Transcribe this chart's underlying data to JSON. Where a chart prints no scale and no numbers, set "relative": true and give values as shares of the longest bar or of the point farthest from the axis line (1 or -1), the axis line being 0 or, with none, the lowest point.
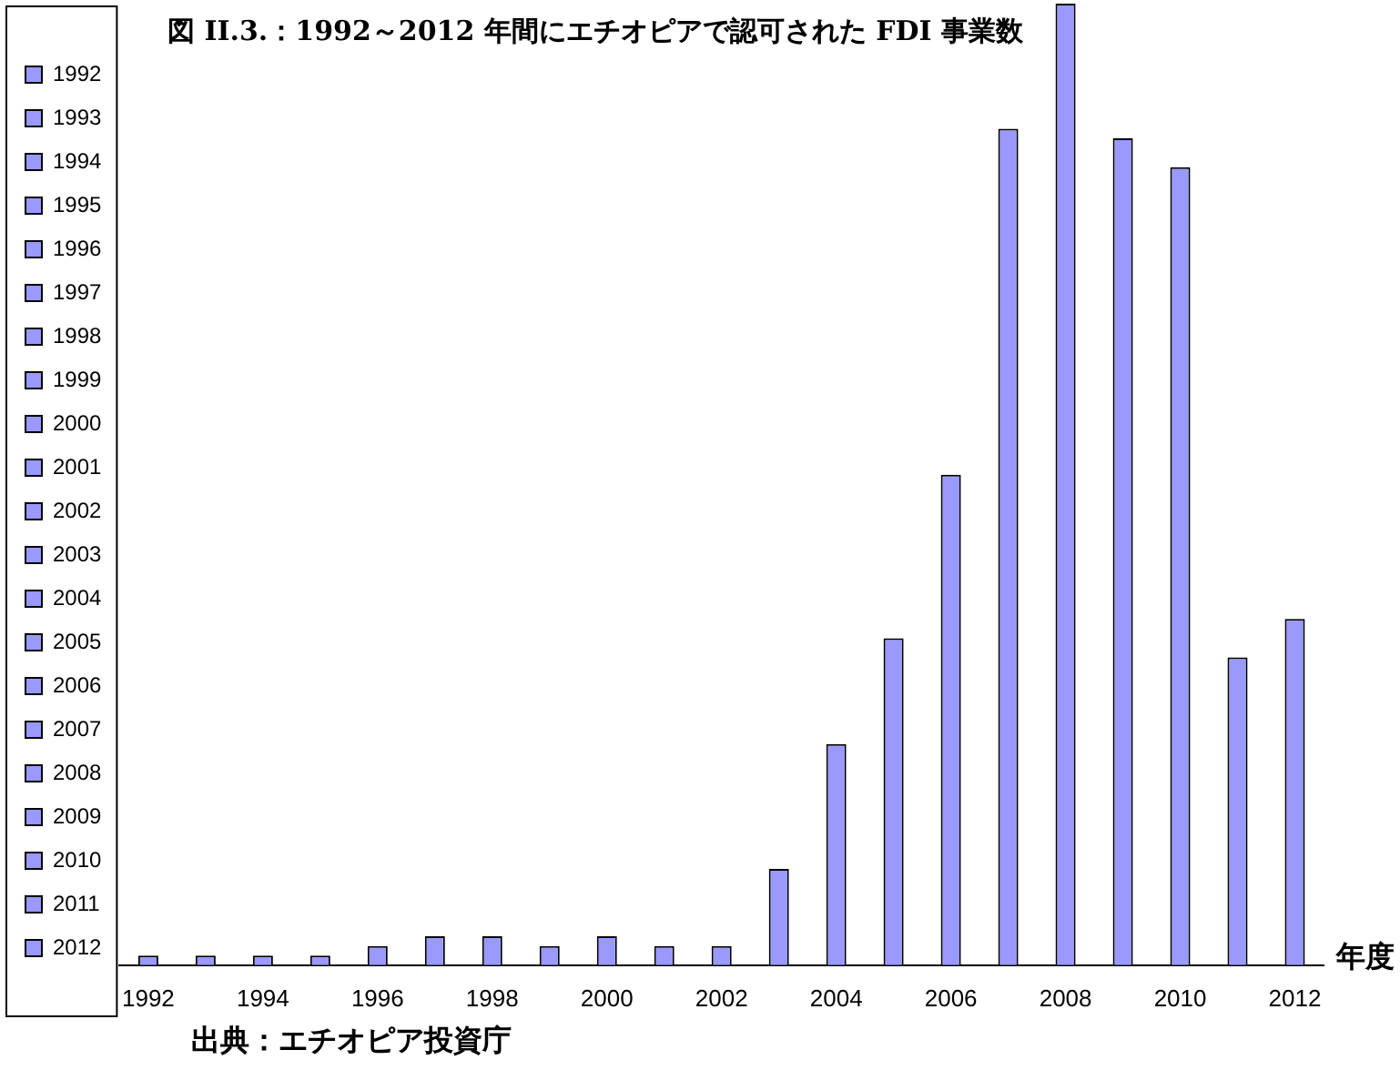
{
  "chart_data": {
    "type": "bar",
    "title": "図 II.3.：1992～2012 年間にエチオピアで認可された FDI 事業数",
    "xlabel": "年度",
    "annotations": [
      "出典：エチオピア投資庁"
    ],
    "categories": [
      "1992",
      null,
      "1994",
      null,
      "1996",
      null,
      "1998",
      null,
      "2000",
      null,
      "2002",
      null,
      "2004",
      null,
      "2006",
      null,
      "2008",
      null,
      "2010",
      null,
      "2012"
    ],
    "series": [
      {
        "name": "1992",
        "color": "#9999ff",
        "values": [
          0.01,
          null,
          null,
          null,
          null,
          null,
          null,
          null,
          null,
          null,
          null,
          null,
          null,
          null,
          null,
          null,
          null,
          null,
          null,
          null,
          null
        ]
      },
      {
        "name": "1993",
        "color": "#9999ff",
        "values": [
          null,
          0.01,
          null,
          null,
          null,
          null,
          null,
          null,
          null,
          null,
          null,
          null,
          null,
          null,
          null,
          null,
          null,
          null,
          null,
          null,
          null
        ]
      },
      {
        "name": "1994",
        "color": "#9999ff",
        "values": [
          null,
          null,
          0.01,
          null,
          null,
          null,
          null,
          null,
          null,
          null,
          null,
          null,
          null,
          null,
          null,
          null,
          null,
          null,
          null,
          null,
          null
        ]
      },
      {
        "name": "1995",
        "color": "#9999ff",
        "values": [
          null,
          null,
          null,
          0.01,
          null,
          null,
          null,
          null,
          null,
          null,
          null,
          null,
          null,
          null,
          null,
          null,
          null,
          null,
          null,
          null,
          null
        ]
      },
      {
        "name": "1996",
        "color": "#9999ff",
        "values": [
          null,
          null,
          null,
          null,
          0.02,
          null,
          null,
          null,
          null,
          null,
          null,
          null,
          null,
          null,
          null,
          null,
          null,
          null,
          null,
          null,
          null
        ]
      },
      {
        "name": "1997",
        "color": "#9999ff",
        "values": [
          null,
          null,
          null,
          null,
          null,
          0.03,
          null,
          null,
          null,
          null,
          null,
          null,
          null,
          null,
          null,
          null,
          null,
          null,
          null,
          null,
          null
        ]
      },
      {
        "name": "1998",
        "color": "#9999ff",
        "values": [
          null,
          null,
          null,
          null,
          null,
          null,
          0.03,
          null,
          null,
          null,
          null,
          null,
          null,
          null,
          null,
          null,
          null,
          null,
          null,
          null,
          null
        ]
      },
      {
        "name": "1999",
        "color": "#9999ff",
        "values": [
          null,
          null,
          null,
          null,
          null,
          null,
          null,
          0.02,
          null,
          null,
          null,
          null,
          null,
          null,
          null,
          null,
          null,
          null,
          null,
          null,
          null
        ]
      },
      {
        "name": "2000",
        "color": "#9999ff",
        "values": [
          null,
          null,
          null,
          null,
          null,
          null,
          null,
          null,
          0.03,
          null,
          null,
          null,
          null,
          null,
          null,
          null,
          null,
          null,
          null,
          null,
          null
        ]
      },
      {
        "name": "2001",
        "color": "#9999ff",
        "values": [
          null,
          null,
          null,
          null,
          null,
          null,
          null,
          null,
          null,
          0.02,
          null,
          null,
          null,
          null,
          null,
          null,
          null,
          null,
          null,
          null,
          null
        ]
      },
      {
        "name": "2002",
        "color": "#9999ff",
        "values": [
          null,
          null,
          null,
          null,
          null,
          null,
          null,
          null,
          null,
          null,
          0.02,
          null,
          null,
          null,
          null,
          null,
          null,
          null,
          null,
          null,
          null
        ]
      },
      {
        "name": "2003",
        "color": "#9999ff",
        "values": [
          null,
          null,
          null,
          null,
          null,
          null,
          null,
          null,
          null,
          null,
          null,
          0.1,
          null,
          null,
          null,
          null,
          null,
          null,
          null,
          null,
          null
        ]
      },
      {
        "name": "2004",
        "color": "#9999ff",
        "values": [
          null,
          null,
          null,
          null,
          null,
          null,
          null,
          null,
          null,
          null,
          null,
          null,
          0.23,
          null,
          null,
          null,
          null,
          null,
          null,
          null,
          null
        ]
      },
      {
        "name": "2005",
        "color": "#9999ff",
        "values": [
          null,
          null,
          null,
          null,
          null,
          null,
          null,
          null,
          null,
          null,
          null,
          null,
          null,
          0.34,
          null,
          null,
          null,
          null,
          null,
          null,
          null
        ]
      },
      {
        "name": "2006",
        "color": "#9999ff",
        "values": [
          null,
          null,
          null,
          null,
          null,
          null,
          null,
          null,
          null,
          null,
          null,
          null,
          null,
          null,
          0.51,
          null,
          null,
          null,
          null,
          null,
          null
        ]
      },
      {
        "name": "2007",
        "color": "#9999ff",
        "values": [
          null,
          null,
          null,
          null,
          null,
          null,
          null,
          null,
          null,
          null,
          null,
          null,
          null,
          null,
          null,
          0.87,
          null,
          null,
          null,
          null,
          null
        ]
      },
      {
        "name": "2008",
        "color": "#9999ff",
        "values": [
          null,
          null,
          null,
          null,
          null,
          null,
          null,
          null,
          null,
          null,
          null,
          null,
          null,
          null,
          null,
          null,
          1,
          null,
          null,
          null,
          null
        ]
      },
      {
        "name": "2009",
        "color": "#9999ff",
        "values": [
          null,
          null,
          null,
          null,
          null,
          null,
          null,
          null,
          null,
          null,
          null,
          null,
          null,
          null,
          null,
          null,
          null,
          0.86,
          null,
          null,
          null
        ]
      },
      {
        "name": "2010",
        "color": "#9999ff",
        "values": [
          null,
          null,
          null,
          null,
          null,
          null,
          null,
          null,
          null,
          null,
          null,
          null,
          null,
          null,
          null,
          null,
          null,
          null,
          0.83,
          null,
          null
        ]
      },
      {
        "name": "2011",
        "color": "#9999ff",
        "values": [
          null,
          null,
          null,
          null,
          null,
          null,
          null,
          null,
          null,
          null,
          null,
          null,
          null,
          null,
          null,
          null,
          null,
          null,
          null,
          0.32,
          null
        ]
      },
      {
        "name": "2012",
        "color": "#9999ff",
        "values": [
          null,
          null,
          null,
          null,
          null,
          null,
          null,
          null,
          null,
          null,
          null,
          null,
          null,
          null,
          null,
          null,
          null,
          null,
          null,
          null,
          0.36
        ]
      }
    ],
    "relative": true,
    "legend": "left"
  }
}
